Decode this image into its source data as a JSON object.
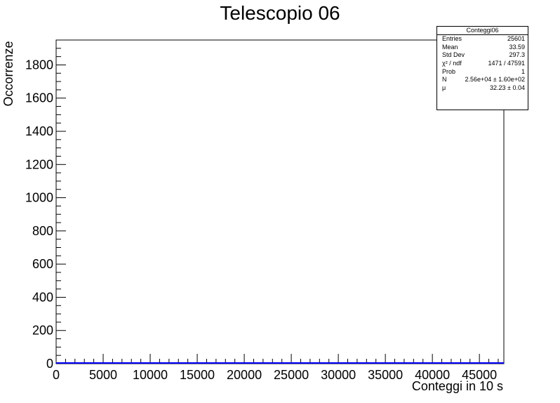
{
  "chart_data": {
    "type": "histogram",
    "title": "Telescopio 06",
    "xlabel": "Conteggi in 10 s",
    "ylabel": "Occorrenze",
    "xlim": [
      0,
      47600
    ],
    "ylim": [
      0,
      1950
    ],
    "x_ticks": [
      0,
      5000,
      10000,
      15000,
      20000,
      25000,
      30000,
      35000,
      40000,
      45000
    ],
    "y_ticks": [
      0,
      200,
      400,
      600,
      800,
      1000,
      1200,
      1400,
      1600,
      1800
    ],
    "x_tick_labels": [
      "0",
      "5000",
      "10000",
      "15000",
      "20000",
      "25000",
      "30000",
      "35000",
      "40000",
      "45000"
    ],
    "y_tick_labels": [
      "0",
      "200",
      "400",
      "600",
      "800",
      "1000",
      "1200",
      "1400",
      "1600",
      "1800"
    ],
    "series": [
      {
        "type": "fit-line",
        "color": "#0000ff",
        "x": [
          0,
          47600
        ],
        "y": [
          0,
          0
        ]
      }
    ],
    "stats": {
      "title": "Conteggi06",
      "rows": [
        {
          "label": "Entries",
          "value": "25601"
        },
        {
          "label": "Mean",
          "value": "33.59"
        },
        {
          "label": "Std Dev",
          "value": "297.3"
        },
        {
          "label": "χ² / ndf",
          "value": "1471 / 47591"
        },
        {
          "label": "Prob",
          "value": "1"
        },
        {
          "label": "N",
          "value": "2.56e+04 ± 1.60e+02"
        },
        {
          "label": "μ",
          "value": "32.23 ± 0.04"
        }
      ]
    }
  }
}
